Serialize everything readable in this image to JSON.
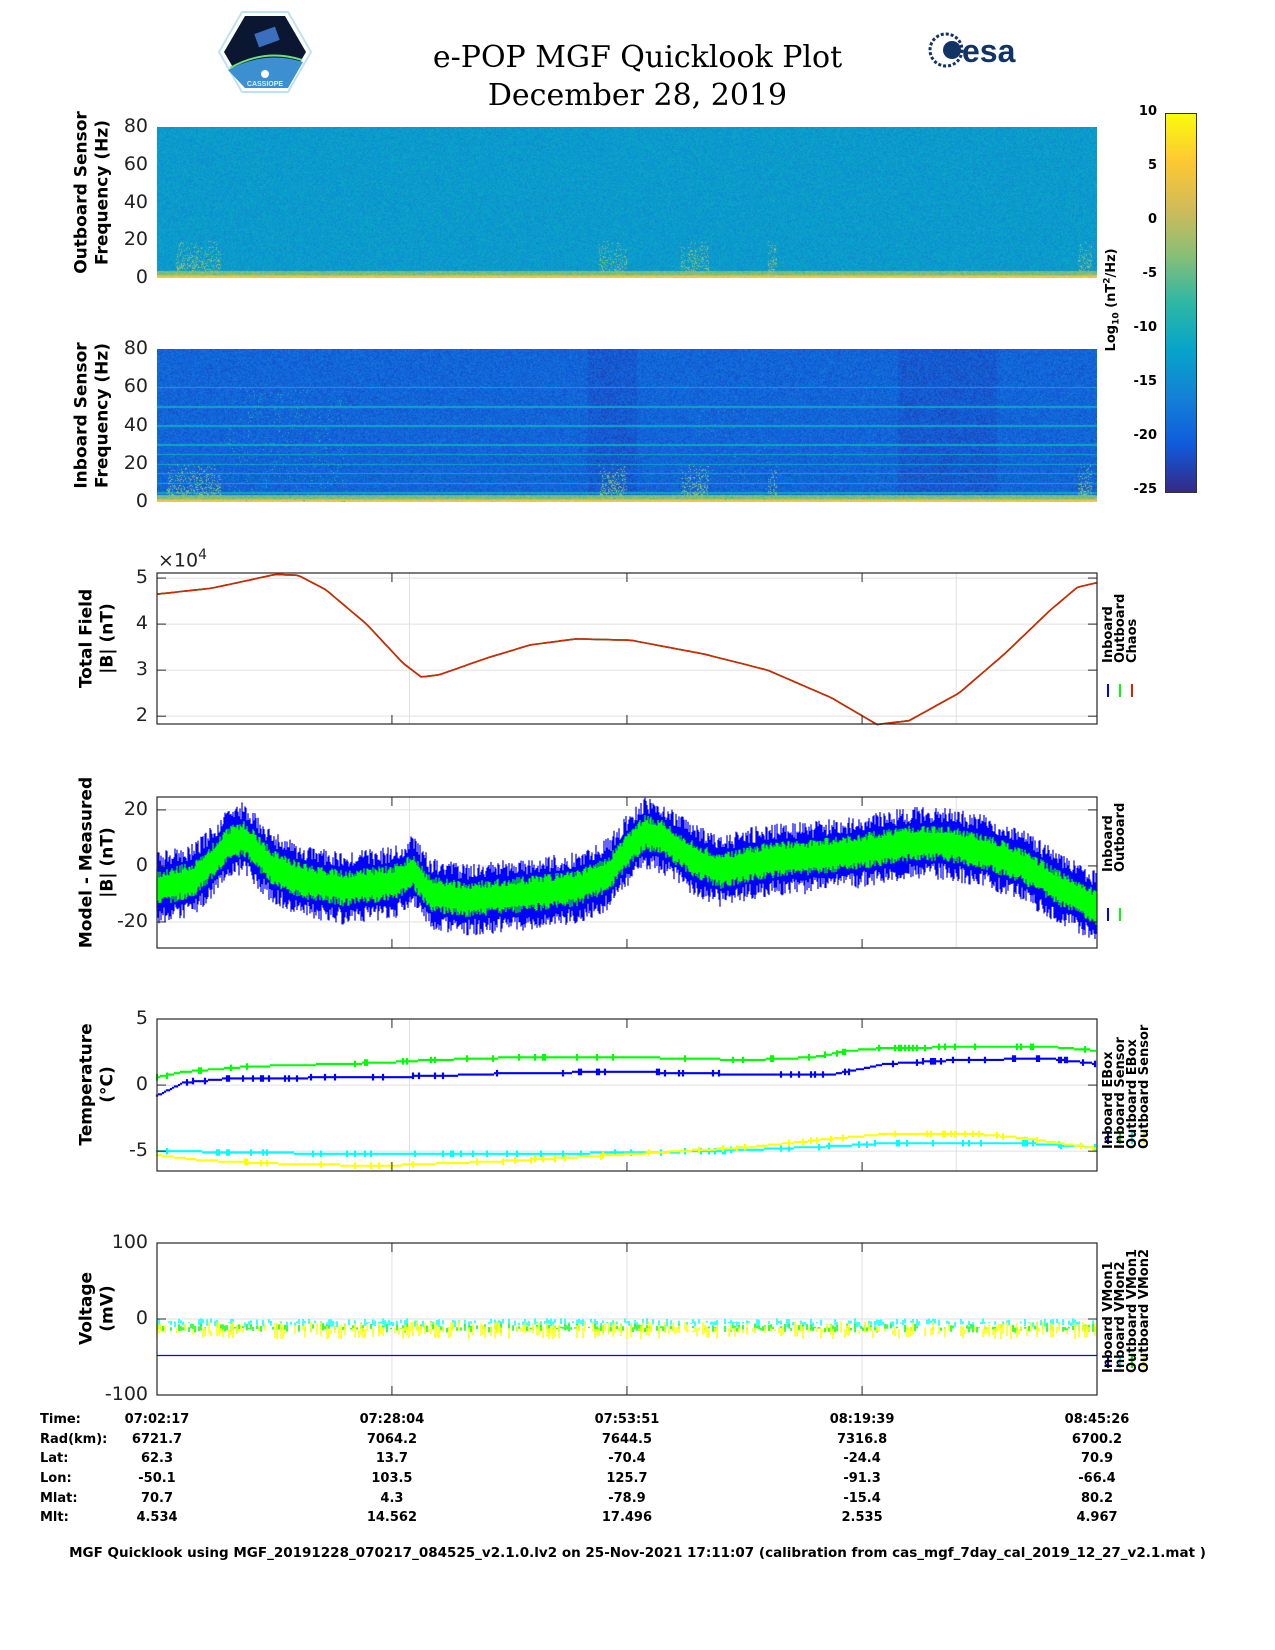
{
  "header": {
    "title": "e-POP MGF Quicklook Plot",
    "date": "December 28, 2019",
    "left_logo_text": "CASSIOPE",
    "right_logo_text": "esa"
  },
  "colorbar": {
    "label": "Log10 (nT2/Hz)",
    "label_main": "Log",
    "label_sub": "10",
    "label_rest": " (nT",
    "label_sup": "2",
    "label_end": "/Hz)",
    "ticks": [
      "10",
      "5",
      "0",
      "-5",
      "-10",
      "-15",
      "-20",
      "-25"
    ],
    "clim": [
      -25,
      10
    ]
  },
  "time_axis": {
    "span_min": 103.15,
    "tick_min": [
      0,
      25.78,
      51.57,
      77.37,
      103.15
    ]
  },
  "chart_data": [
    {
      "type": "heatmap",
      "name": "outboard-spectrogram",
      "ylabel": [
        "Outboard Sensor",
        "Frequency (Hz)"
      ],
      "ylim": [
        0,
        80
      ],
      "yticks": [
        "80",
        "60",
        "40",
        "20",
        "0"
      ],
      "background_log_power": -13,
      "low_freq_log_power": 8,
      "burst_windows_min": [
        [
          2,
          7
        ],
        [
          48.5,
          51.5
        ],
        [
          57.5,
          60.5
        ],
        [
          67,
          68
        ],
        [
          101,
          102.5
        ]
      ]
    },
    {
      "type": "heatmap",
      "name": "inboard-spectrogram",
      "ylabel": [
        "Inboard Sensor",
        "Frequency (Hz)"
      ],
      "ylim": [
        0,
        80
      ],
      "yticks": [
        "80",
        "60",
        "40",
        "20",
        "0"
      ],
      "background_log_power": -19.5,
      "low_freq_log_power": 8,
      "line_freqs_hz": [
        5,
        10,
        15,
        20,
        25,
        30,
        40,
        50,
        60
      ],
      "burst_windows_min": [
        [
          1,
          7
        ],
        [
          48.5,
          51.5
        ],
        [
          57.5,
          60.5
        ],
        [
          67,
          68
        ],
        [
          101,
          102.5
        ]
      ]
    },
    {
      "type": "line",
      "name": "total-field",
      "ylabel": [
        "Total Field",
        "|B| (nT)"
      ],
      "exponent_label": "×10",
      "exponent": "4",
      "ylim": [
        1.83,
        5.11
      ],
      "yticks": [
        5,
        4,
        3,
        2
      ],
      "ytick_labels": [
        "5",
        "4",
        "3",
        "2"
      ],
      "grid_x_min": [
        27.7,
        87.7
      ],
      "legend": [
        "Inboard",
        "Outboard",
        "Chaos"
      ],
      "series": [
        {
          "name": "Inboard",
          "color": "#0000ff",
          "x": [
            0,
            6,
            10,
            13,
            15.5,
            18.5,
            23,
            27,
            29,
            31,
            36,
            41,
            46,
            52,
            60,
            67,
            74,
            79,
            82.5,
            88,
            93,
            98,
            101,
            103.15
          ],
          "y": [
            4.65,
            4.78,
            4.95,
            5.08,
            5.06,
            4.75,
            4.0,
            3.15,
            2.85,
            2.9,
            3.25,
            3.55,
            3.68,
            3.65,
            3.35,
            3.0,
            2.4,
            1.82,
            1.9,
            2.5,
            3.35,
            4.3,
            4.8,
            4.9
          ]
        },
        {
          "name": "Outboard",
          "color": "#00ff00",
          "x": [
            0,
            6,
            10,
            13,
            15.5,
            18.5,
            23,
            27,
            29,
            31,
            36,
            41,
            46,
            52,
            60,
            67,
            74,
            79,
            82.5,
            88,
            93,
            98,
            101,
            103.15
          ],
          "y": [
            4.65,
            4.78,
            4.95,
            5.08,
            5.06,
            4.75,
            4.0,
            3.15,
            2.85,
            2.9,
            3.25,
            3.55,
            3.68,
            3.65,
            3.35,
            3.0,
            2.4,
            1.82,
            1.9,
            2.5,
            3.35,
            4.3,
            4.8,
            4.9
          ]
        },
        {
          "name": "Chaos",
          "color": "#dd2200",
          "x": [
            0,
            6,
            10,
            13,
            15.5,
            18.5,
            23,
            27,
            29,
            31,
            36,
            41,
            46,
            52,
            60,
            67,
            74,
            79,
            82.5,
            88,
            93,
            98,
            101,
            103.15
          ],
          "y": [
            4.65,
            4.78,
            4.95,
            5.08,
            5.06,
            4.75,
            4.0,
            3.15,
            2.85,
            2.9,
            3.25,
            3.55,
            3.68,
            3.65,
            3.35,
            3.0,
            2.4,
            1.82,
            1.9,
            2.5,
            3.35,
            4.3,
            4.8,
            4.9
          ]
        }
      ]
    },
    {
      "type": "line",
      "name": "model-minus-measured",
      "ylabel": [
        "Model - Measured",
        "|B| (nT)"
      ],
      "ylim": [
        -29.3,
        24.6
      ],
      "yticks": [
        20,
        0,
        -20
      ],
      "ytick_labels": [
        "20",
        "0",
        "-20"
      ],
      "grid_x_min": [
        27.7,
        87.7
      ],
      "legend": [
        "Inboard",
        "Outboard"
      ],
      "series": [
        {
          "name": "Inboard",
          "color": "#0000ff",
          "noise_nT": 10,
          "x": [
            0,
            4,
            8,
            9.5,
            12.5,
            15.5,
            20.5,
            26,
            28,
            30,
            34,
            41,
            46,
            49.5,
            51.5,
            53.5,
            55.5,
            59,
            62,
            64,
            67,
            72,
            77,
            82.5,
            86.5,
            91,
            95,
            99,
            103.15
          ],
          "y": [
            -8,
            -5,
            8,
            10,
            0,
            -5,
            -8,
            -6,
            -2,
            -10,
            -12,
            -10,
            -8,
            -3,
            5,
            12,
            10,
            2,
            -2,
            0,
            2,
            3,
            5,
            8,
            8,
            5,
            0,
            -8,
            -15
          ]
        },
        {
          "name": "Outboard",
          "color": "#00ff00",
          "noise_nT": 5,
          "x": [
            0,
            4,
            8,
            9.5,
            12.5,
            15.5,
            20.5,
            26,
            28,
            30,
            34,
            41,
            46,
            49.5,
            51.5,
            53.5,
            55.5,
            59,
            62,
            64,
            67,
            72,
            77,
            82.5,
            86.5,
            91,
            95,
            99,
            103.15
          ],
          "y": [
            -8,
            -5,
            8,
            10,
            0,
            -5,
            -8,
            -6,
            -2,
            -10,
            -12,
            -10,
            -8,
            -3,
            5,
            12,
            10,
            2,
            -2,
            0,
            2,
            3,
            5,
            8,
            8,
            5,
            0,
            -8,
            -15
          ]
        }
      ]
    },
    {
      "type": "line",
      "name": "temperature",
      "ylabel": [
        "Temperature",
        "(°C)"
      ],
      "ylim": [
        -6.5,
        5
      ],
      "yticks": [
        5,
        0,
        -5
      ],
      "ytick_labels": [
        "5",
        "0",
        "-5"
      ],
      "grid_x_min": [
        27.7,
        87.7
      ],
      "legend": [
        "Inboard EBox",
        "Inboard Sensor",
        "Outboard EBox",
        "Outboard Sensor"
      ],
      "series": [
        {
          "name": "Inboard EBox",
          "color": "#0000ff",
          "x": [
            0,
            3,
            8,
            25,
            31,
            39,
            52,
            65,
            74,
            78,
            80,
            88,
            98,
            103.15
          ],
          "y": [
            -0.8,
            0.2,
            0.5,
            0.6,
            0.7,
            0.9,
            1.0,
            0.8,
            0.8,
            1.3,
            1.6,
            1.9,
            2.0,
            1.6
          ]
        },
        {
          "name": "Inboard Sensor",
          "color": "#00ff00",
          "x": [
            0,
            3,
            10,
            25,
            30,
            40,
            52,
            65,
            72,
            76,
            80,
            90,
            98,
            103.15
          ],
          "y": [
            0.6,
            1.0,
            1.4,
            1.7,
            1.9,
            2.1,
            2.1,
            1.9,
            2.1,
            2.6,
            2.8,
            2.9,
            2.9,
            2.6
          ]
        },
        {
          "name": "Outboard EBox",
          "color": "#00ffff",
          "x": [
            0,
            20,
            40,
            55,
            65,
            75,
            80,
            95,
            103.15
          ],
          "y": [
            -5.0,
            -5.2,
            -5.2,
            -5.1,
            -4.9,
            -4.6,
            -4.4,
            -4.4,
            -4.7
          ]
        },
        {
          "name": "Outboard Sensor",
          "color": "#ffff00",
          "x": [
            0,
            5,
            15,
            25,
            40,
            55,
            65,
            75,
            80,
            90,
            95,
            103.15
          ],
          "y": [
            -5.3,
            -5.7,
            -6.0,
            -6.1,
            -5.7,
            -5.1,
            -4.7,
            -4.0,
            -3.7,
            -3.7,
            -4.0,
            -4.8
          ]
        }
      ]
    },
    {
      "type": "line",
      "name": "voltage",
      "ylabel": [
        "Voltage",
        "(mV)"
      ],
      "ylim": [
        -100,
        100
      ],
      "yticks": [
        100,
        0,
        -100
      ],
      "ytick_labels": [
        "100",
        "0",
        "-100"
      ],
      "grid_x_min": [
        25.78,
        51.57,
        77.37
      ],
      "legend": [
        "Inboard VMon1",
        "Inboard VMon2",
        "Outboard VMon1",
        "Outboard VMon2"
      ],
      "series": [
        {
          "name": "Inboard VMon1",
          "color": "#0000ff",
          "noise_mV": 0,
          "x": [
            0,
            103.15
          ],
          "y": [
            -48,
            -48
          ]
        },
        {
          "name": "Inboard VMon2",
          "color": "#00ffff",
          "noise_mV": 6,
          "x": [
            0,
            103.15
          ],
          "y": [
            -5,
            -5
          ]
        },
        {
          "name": "Outboard VMon1",
          "color": "#00ff00",
          "noise_mV": 6,
          "x": [
            0,
            103.15
          ],
          "y": [
            -12,
            -12
          ]
        },
        {
          "name": "Outboard VMon2",
          "color": "#ffff00",
          "noise_mV": 12,
          "x": [
            0,
            103.15
          ],
          "y": [
            -15,
            -15
          ]
        }
      ]
    }
  ],
  "ephemeris": {
    "labels": [
      "Time:",
      "Rad(km):",
      "Lat:",
      "Lon:",
      "Mlat:",
      "Mlt:"
    ],
    "columns": [
      [
        "07:02:17",
        "6721.7",
        "62.3",
        "-50.1",
        "70.7",
        "4.534"
      ],
      [
        "07:28:04",
        "7064.2",
        "13.7",
        "103.5",
        "4.3",
        "14.562"
      ],
      [
        "07:53:51",
        "7644.5",
        "-70.4",
        "125.7",
        "-78.9",
        "17.496"
      ],
      [
        "08:19:39",
        "7316.8",
        "-24.4",
        "-91.3",
        "-15.4",
        "2.535"
      ],
      [
        "08:45:26",
        "6700.2",
        "70.9",
        "-66.4",
        "80.2",
        "4.967"
      ]
    ]
  },
  "footer": "MGF Quicklook using MGF_20191228_070217_084525_v2.1.0.lv2 on 25-Nov-2021 17:11:07 (calibration from cas_mgf_7day_cal_2019_12_27_v2.1.mat )"
}
